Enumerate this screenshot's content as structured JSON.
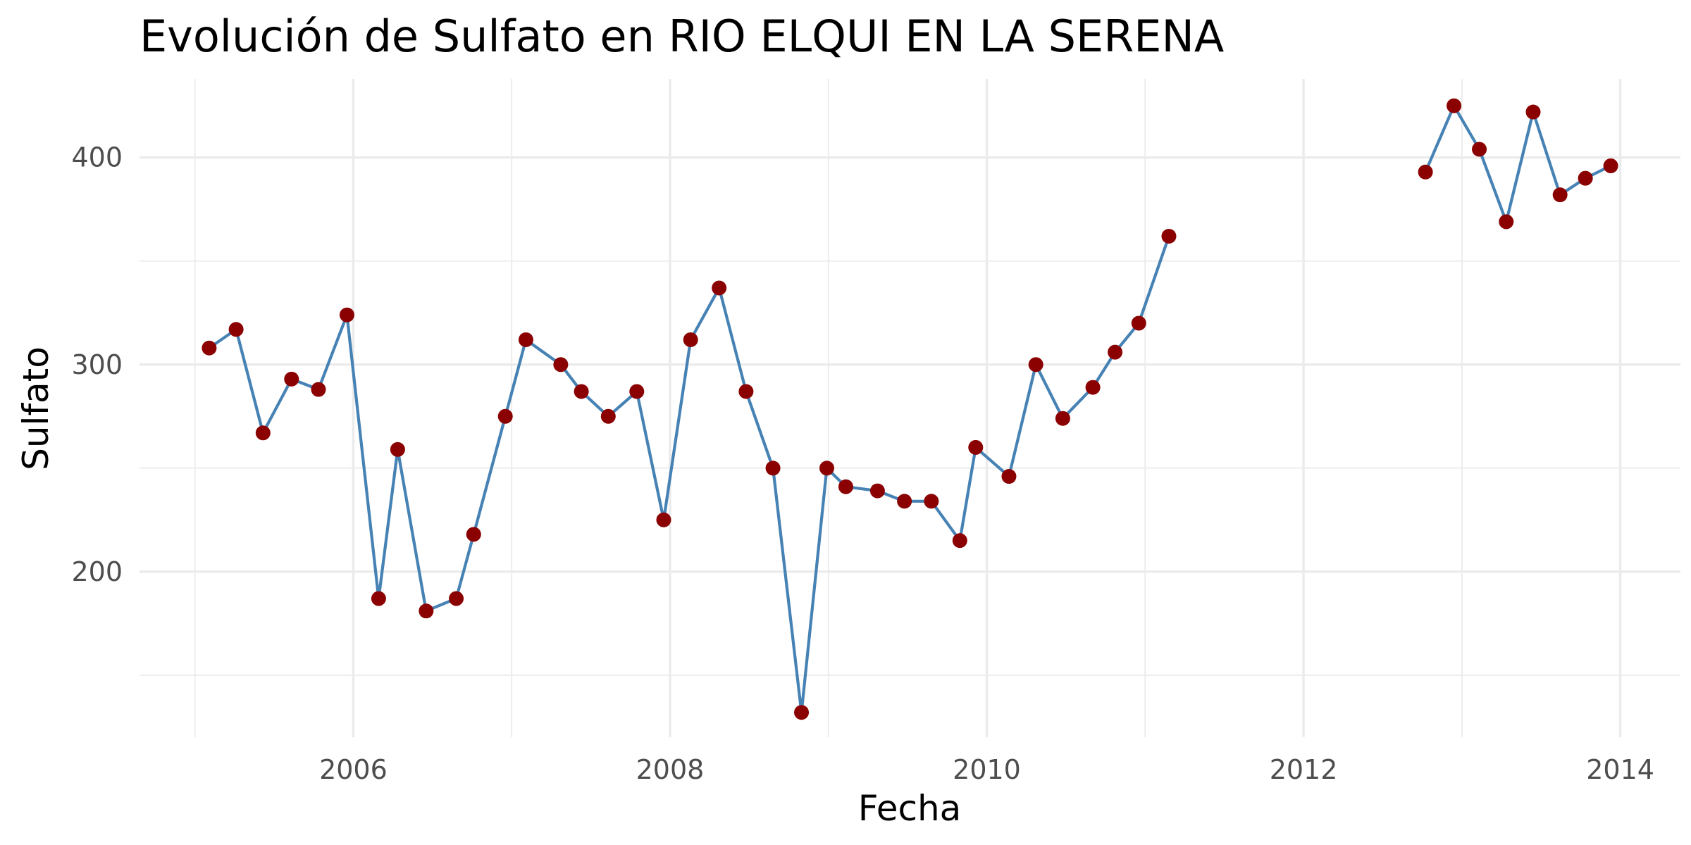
{
  "chart_data": {
    "type": "line",
    "title": "Evolución de Sulfato en RIO ELQUI EN LA SERENA",
    "xlabel": "Fecha",
    "ylabel": "Sulfato",
    "x_ticks": [
      2006,
      2008,
      2010,
      2012,
      2014
    ],
    "x_tick_labels": [
      "2006",
      "2008",
      "2010",
      "2012",
      "2014"
    ],
    "y_ticks": [
      200,
      300,
      400
    ],
    "y_tick_labels": [
      "200",
      "300",
      "400"
    ],
    "xlim": [
      2004.65,
      2014.38
    ],
    "ylim": [
      120,
      438
    ],
    "grid": true,
    "line_color": "#4682B4",
    "point_color": "#8B0000",
    "series": [
      {
        "segments": [
          {
            "x": [
              2005.09,
              2005.26,
              2005.43,
              2005.61,
              2005.78,
              2005.96,
              2006.16,
              2006.28,
              2006.46,
              2006.65,
              2006.76,
              2006.96,
              2007.09,
              2007.31,
              2007.44,
              2007.61,
              2007.79,
              2007.96,
              2008.13,
              2008.31,
              2008.48,
              2008.65,
              2008.83,
              2008.99,
              2009.11,
              2009.31,
              2009.48,
              2009.65,
              2009.83,
              2009.93,
              2010.14,
              2010.31,
              2010.48,
              2010.67,
              2010.81,
              2010.96,
              2011.15
            ],
            "y": [
              308,
              317,
              267,
              293,
              288,
              324,
              187,
              259,
              181,
              187,
              218,
              275,
              312,
              300,
              287,
              275,
              287,
              225,
              312,
              337,
              287,
              250,
              132,
              250,
              241,
              239,
              234,
              234,
              215,
              260,
              246,
              300,
              274,
              289,
              306,
              320,
              362
            ]
          },
          {
            "x": [
              2012.77,
              2012.95,
              2013.11,
              2013.28,
              2013.45,
              2013.62,
              2013.78,
              2013.94
            ],
            "y": [
              393,
              425,
              404,
              369,
              422,
              382,
              390,
              396
            ]
          }
        ]
      }
    ]
  }
}
